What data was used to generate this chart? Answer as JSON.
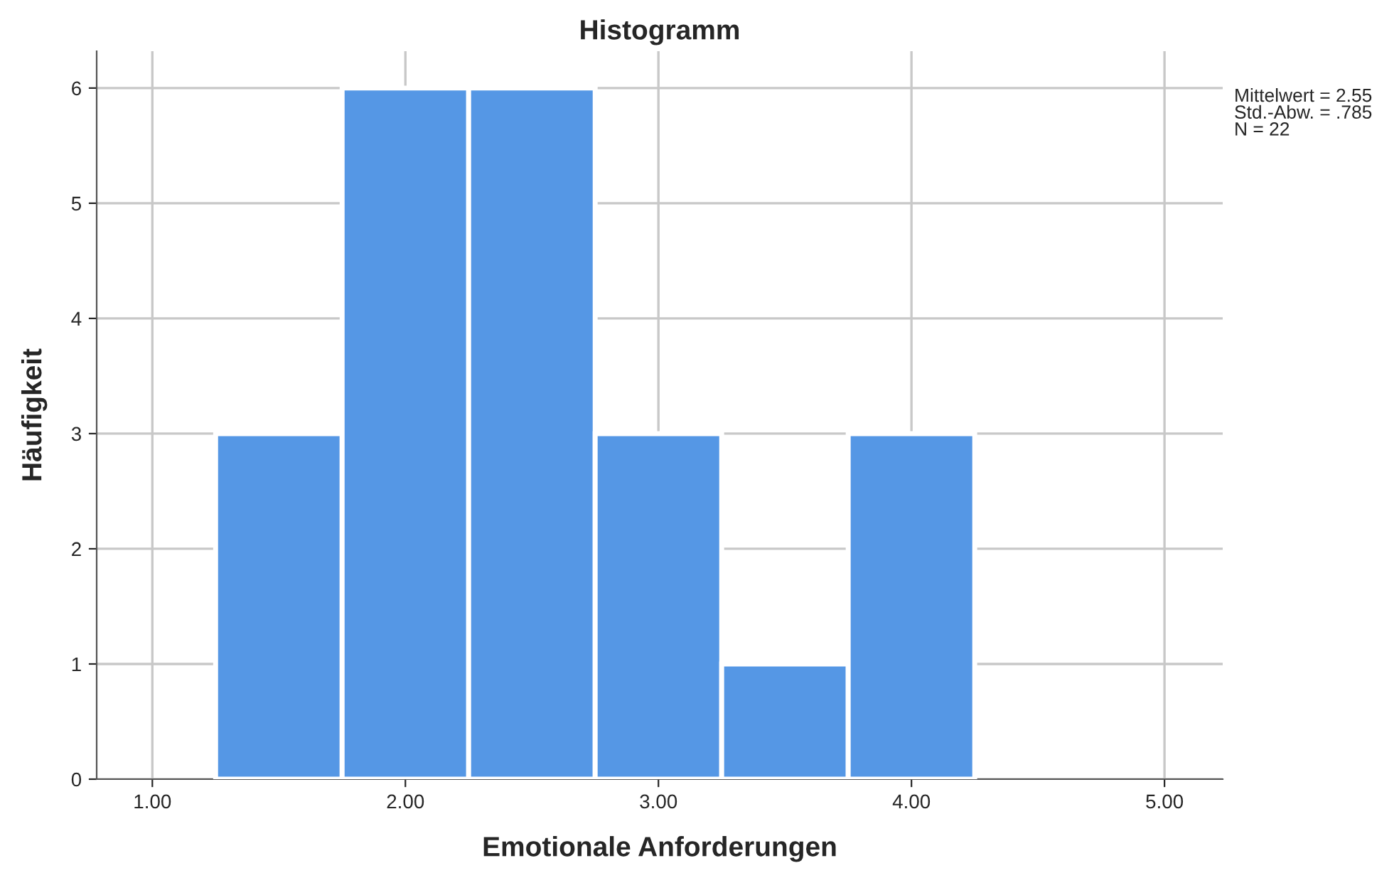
{
  "chart_data": {
    "type": "histogram",
    "title": "Histogramm",
    "xlabel": "Emotionale Anforderungen",
    "ylabel": "Häufigkeit",
    "bins": [
      1.25,
      1.75,
      2.25,
      2.75,
      3.25,
      3.75,
      4.25
    ],
    "values": [
      3,
      6,
      6,
      3,
      1,
      3
    ],
    "color": "#5597e5",
    "xlim": [
      0.78,
      5.23
    ],
    "ylim": [
      0,
      6.32
    ],
    "xticks": [
      {
        "value": 1,
        "label": "1.00"
      },
      {
        "value": 2,
        "label": "2.00"
      },
      {
        "value": 3,
        "label": "3.00"
      },
      {
        "value": 4,
        "label": "4.00"
      },
      {
        "value": 5,
        "label": "5.00"
      }
    ],
    "yticks": [
      0,
      1,
      2,
      3,
      4,
      5,
      6
    ],
    "grid": true,
    "annotations": [
      "Mittelwert = 2.55\nStd.-Abw. = .785\nN = 22"
    ]
  }
}
